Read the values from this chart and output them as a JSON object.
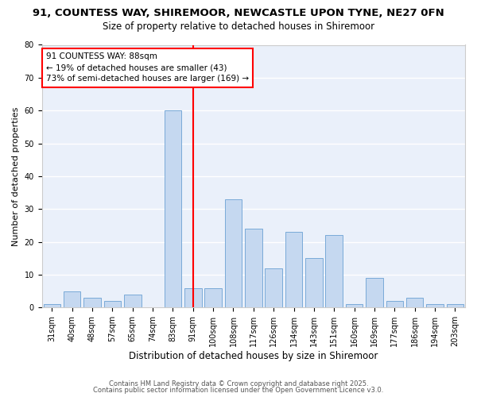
{
  "title_line1": "91, COUNTESS WAY, SHIREMOOR, NEWCASTLE UPON TYNE, NE27 0FN",
  "title_line2": "Size of property relative to detached houses in Shiremoor",
  "xlabel": "Distribution of detached houses by size in Shiremoor",
  "ylabel": "Number of detached properties",
  "categories": [
    "31sqm",
    "40sqm",
    "48sqm",
    "57sqm",
    "65sqm",
    "74sqm",
    "83sqm",
    "91sqm",
    "100sqm",
    "108sqm",
    "117sqm",
    "126sqm",
    "134sqm",
    "143sqm",
    "151sqm",
    "160sqm",
    "169sqm",
    "177sqm",
    "186sqm",
    "194sqm",
    "203sqm"
  ],
  "values": [
    1,
    5,
    3,
    2,
    4,
    0,
    60,
    6,
    6,
    33,
    24,
    12,
    23,
    15,
    22,
    1,
    9,
    2,
    3,
    1,
    1
  ],
  "bar_color": "#c5d8f0",
  "bar_edge_color": "#7aaad8",
  "vline_x": 7,
  "vline_color": "red",
  "annotation_text": "91 COUNTESS WAY: 88sqm\n← 19% of detached houses are smaller (43)\n73% of semi-detached houses are larger (169) →",
  "annotation_box_color": "white",
  "annotation_box_edge_color": "red",
  "ylim": [
    0,
    80
  ],
  "yticks": [
    0,
    10,
    20,
    30,
    40,
    50,
    60,
    70,
    80
  ],
  "bg_color": "#eaf0fa",
  "grid_color": "white",
  "footer_line1": "Contains HM Land Registry data © Crown copyright and database right 2025.",
  "footer_line2": "Contains public sector information licensed under the Open Government Licence v3.0.",
  "title_fontsize": 9.5,
  "subtitle_fontsize": 8.5,
  "xlabel_fontsize": 8.5,
  "ylabel_fontsize": 8,
  "tick_fontsize": 7,
  "annotation_fontsize": 7.5,
  "footer_fontsize": 6
}
